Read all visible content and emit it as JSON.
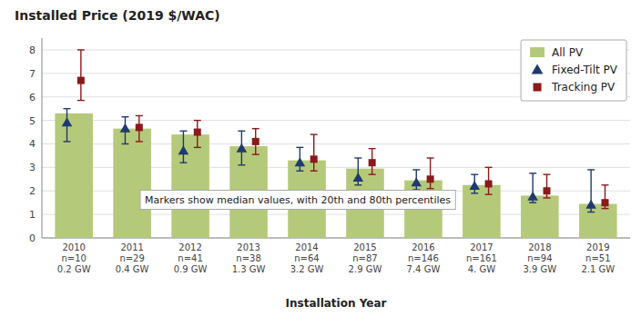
{
  "chart_data": {
    "type": "bar",
    "title": "Installed Price (2019 $/WAC)",
    "xlabel": "Installation Year",
    "annotation": "Markers show median values, with 20th and 80th percentiles",
    "categories": [
      "2010\nn=10\n0.2 GW",
      "2011\nn=29\n0.4 GW",
      "2012\nn=41\n0.9 GW",
      "2013\nn=38\n1.3 GW",
      "2014\nn=64\n3.2 GW",
      "2015\nn=87\n2.9 GW",
      "2016\nn=146\n7.4 GW",
      "2017\nn=161\n4. GW",
      "2018\nn=94\n3.9 GW",
      "2019\nn=51\n2.1 GW"
    ],
    "series": [
      {
        "name": "All PV",
        "type": "bar",
        "color": "#b5c97a",
        "values": [
          5.3,
          4.65,
          4.4,
          3.9,
          3.3,
          2.95,
          2.45,
          2.25,
          1.8,
          1.45
        ]
      },
      {
        "name": "Fixed-Tilt PV",
        "type": "errorbar",
        "color": "#1f3a6e",
        "marker": "triangle",
        "values": [
          4.9,
          4.65,
          3.7,
          3.8,
          3.2,
          2.55,
          2.35,
          2.2,
          1.75,
          1.4
        ],
        "p20": [
          4.1,
          4.0,
          3.2,
          3.1,
          2.85,
          2.25,
          2.05,
          1.9,
          1.5,
          1.1
        ],
        "p80": [
          5.5,
          5.15,
          4.55,
          4.55,
          3.85,
          3.4,
          2.9,
          2.7,
          2.75,
          2.9
        ]
      },
      {
        "name": "Tracking PV",
        "type": "errorbar",
        "color": "#8b1a1a",
        "marker": "square",
        "values": [
          6.7,
          4.7,
          4.5,
          4.1,
          3.35,
          3.2,
          2.5,
          2.3,
          2.0,
          1.5
        ],
        "p20": [
          5.85,
          4.1,
          3.85,
          3.55,
          2.85,
          2.7,
          2.1,
          1.85,
          1.7,
          1.25
        ],
        "p80": [
          8.0,
          5.2,
          5.0,
          4.65,
          4.4,
          3.8,
          3.4,
          3.0,
          2.7,
          2.25
        ]
      }
    ],
    "ylim": [
      0,
      8.5
    ],
    "yticks": [
      0,
      1,
      2,
      3,
      4,
      5,
      6,
      7,
      8
    ],
    "grid": true,
    "legend": "upper-right"
  }
}
